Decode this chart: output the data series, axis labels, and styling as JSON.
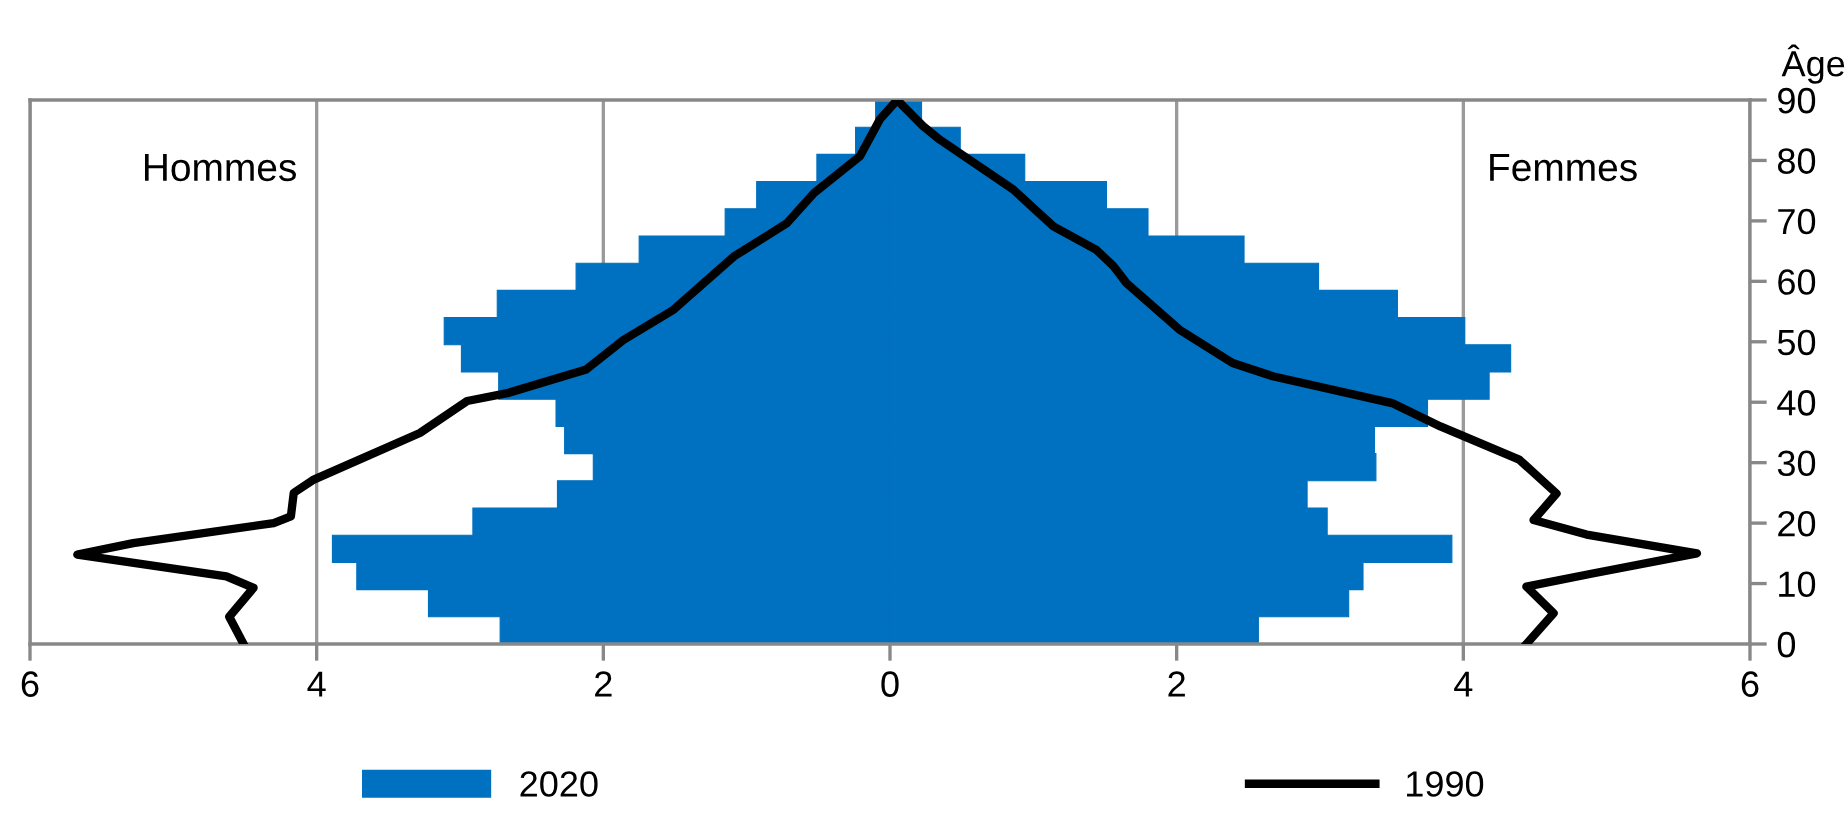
{
  "chart_data": {
    "type": "bar",
    "orientation": "horizontal",
    "ylabel": "Âge",
    "annotations": [
      "Hommes",
      "Femmes"
    ],
    "xlim": [
      -6,
      6
    ],
    "xticks": [
      {
        "value": -6,
        "label": "6"
      },
      {
        "value": -4,
        "label": "4"
      },
      {
        "value": -2,
        "label": "2"
      },
      0,
      2,
      4,
      6
    ],
    "ylim": [
      0,
      90
    ],
    "yticks": [
      0,
      10,
      20,
      30,
      40,
      50,
      60,
      70,
      80,
      90
    ],
    "grid": "x",
    "legend": "bottom",
    "stacked": true,
    "series": [
      {
        "name": "2020",
        "color": "#0070c0",
        "x": [
          2.25,
          6.75,
          11.25,
          15.75,
          20.25,
          24.75,
          29.25,
          33.75,
          38.25,
          42.75,
          47.25,
          51.75,
          56.25,
          60.75,
          65.25,
          69.75,
          74.25,
          78.75,
          83.25,
          87.75
        ],
        "values": [
          -2.72,
          -3.22,
          -3.72,
          -3.89,
          -2.91,
          -2.32,
          -2.07,
          -2.27,
          -2.33,
          -2.73,
          -2.99,
          -3.11,
          -2.74,
          -2.19,
          -1.75,
          -1.15,
          -0.93,
          -0.51,
          -0.24,
          -0.1
        ]
      },
      {
        "name": null,
        "color": "#0070c0",
        "x": [
          2.25,
          6.75,
          11.25,
          15.75,
          20.25,
          24.75,
          29.25,
          33.75,
          38.25,
          42.75,
          47.25,
          51.75,
          56.25,
          60.75,
          65.25,
          69.75,
          74.25,
          78.75,
          83.25,
          87.75
        ],
        "values": [
          2.57,
          3.2,
          3.3,
          3.92,
          3.05,
          2.91,
          3.39,
          3.38,
          3.75,
          4.18,
          4.33,
          4.01,
          3.54,
          2.99,
          2.47,
          1.8,
          1.51,
          0.94,
          0.49,
          0.22
        ]
      },
      {
        "name": "1990",
        "type": "line",
        "color": "#000000",
        "x": [
          0,
          4.5,
          9.3,
          11.2,
          14.8,
          16.7,
          20,
          21.1,
          25,
          27.2,
          34.9,
          40.2,
          41.5,
          45.4,
          50.3,
          55.3,
          64.1,
          69.6,
          74.6,
          80.7,
          86.8,
          90,
          85.7,
          83.4,
          75.2,
          69.1,
          65.2,
          62.5,
          59.7,
          52,
          46.5,
          44.3,
          39.8,
          36,
          30.5,
          24.9,
          20.5,
          18.1,
          15,
          11.7,
          9.5,
          5.1,
          0
        ],
        "values": [
          -4.51,
          -4.61,
          -4.44,
          -4.63,
          -5.67,
          -5.28,
          -4.3,
          -4.18,
          -4.16,
          -4.02,
          -3.28,
          -2.95,
          -2.67,
          -2.12,
          -1.86,
          -1.51,
          -1.09,
          -0.72,
          -0.53,
          -0.21,
          -0.07,
          0.05,
          0.23,
          0.35,
          0.86,
          1.14,
          1.44,
          1.56,
          1.65,
          2.02,
          2.39,
          2.67,
          3.51,
          3.84,
          4.39,
          4.65,
          4.49,
          4.86,
          5.63,
          4.91,
          4.44,
          4.63,
          4.44
        ]
      }
    ]
  }
}
